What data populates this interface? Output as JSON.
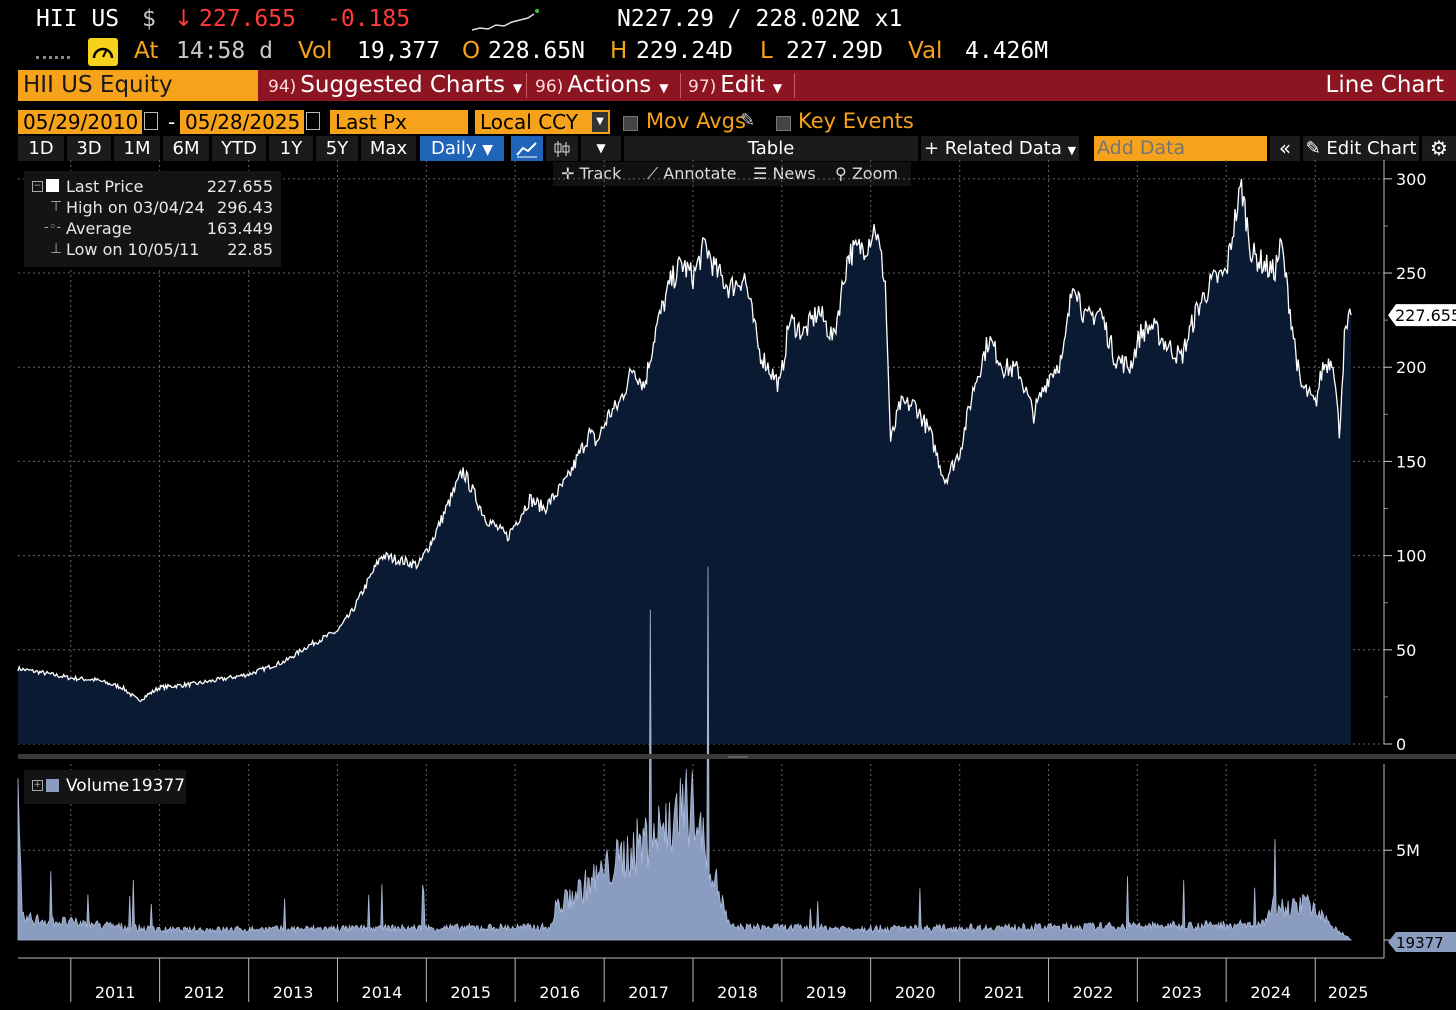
{
  "ticker": {
    "symbol": "HII US",
    "currency": "$",
    "arrow": "↓",
    "last": "227.655",
    "change": "-0.185",
    "bid_ask": "N227.29 / 228.02N",
    "size": "2 x1",
    "at_label": "At",
    "time": "14:58 d",
    "vol_label": "Vol",
    "vol": "19,377",
    "open_label": "O",
    "open": "228.65N",
    "high_label": "H",
    "high": "229.24D",
    "low_label": "L",
    "low": "227.29D",
    "val_label": "Val",
    "val": "4.426M"
  },
  "command_bar": {
    "security": "HII US Equity",
    "suggested_num": "94)",
    "suggested": "Suggested Charts",
    "actions_num": "96)",
    "actions": "Actions",
    "edit_num": "97)",
    "edit": "Edit",
    "chart_type": "Line Chart"
  },
  "settings": {
    "start_date": "05/29/2010",
    "dash": "-",
    "end_date": "05/28/2025",
    "field": "Last Px",
    "currency": "Local CCY",
    "mov_avgs": "Mov Avgs",
    "key_events": "Key Events"
  },
  "periods": [
    "1D",
    "3D",
    "1M",
    "6M",
    "YTD",
    "1Y",
    "5Y",
    "Max"
  ],
  "frequency": "Daily",
  "buttons": {
    "table": "Table",
    "related": "Related Data",
    "add_data_placeholder": "Add Data",
    "edit_chart": "Edit Chart"
  },
  "toolbar": {
    "track": "Track",
    "annotate": "Annotate",
    "news": "News",
    "zoom": "Zoom"
  },
  "legend": {
    "last_label": "Last Price",
    "last_value": "227.655",
    "high_label": "High on 03/04/24",
    "high_value": "296.43",
    "avg_label": "Average",
    "avg_value": "163.449",
    "low_label": "Low on 10/05/11",
    "low_value": "22.85"
  },
  "volume_legend": {
    "label": "Volume",
    "value": "19377"
  },
  "price_tag": "227.655",
  "volume_tag": "19377",
  "colors": {
    "area_fill": "#0b1a33",
    "line": "#ffffff",
    "volume_fill": "#8a9cc0",
    "orange": "#f7a21b",
    "bar_red": "#8c1521",
    "selected_blue": "#1f64b8",
    "down_red": "#ff3b3b"
  },
  "chart_data": [
    {
      "type": "area",
      "series": [
        {
          "name": "Last Price",
          "x": [
            "2010-05-29",
            "2010-09-01",
            "2011-01-01",
            "2011-04-15",
            "2011-08-01",
            "2011-10-05",
            "2012-01-01",
            "2012-06-01",
            "2013-01-01",
            "2013-06-01",
            "2013-09-01",
            "2014-01-01",
            "2014-03-01",
            "2014-07-01",
            "2014-12-01",
            "2015-02-01",
            "2015-06-01",
            "2015-09-01",
            "2015-12-01",
            "2016-03-01",
            "2016-05-01",
            "2016-08-01",
            "2016-11-01",
            "2016-12-01",
            "2017-01-20",
            "2017-03-01",
            "2017-05-01",
            "2017-06-15",
            "2017-08-01",
            "2017-10-01",
            "2017-11-15",
            "2018-01-01",
            "2018-02-20",
            "2018-04-01",
            "2018-06-01",
            "2018-08-01",
            "2018-10-01",
            "2018-12-24",
            "2019-02-01",
            "2019-04-01",
            "2019-06-01",
            "2019-08-01",
            "2019-10-01",
            "2019-12-15",
            "2020-01-20",
            "2020-03-01",
            "2020-03-23",
            "2020-05-01",
            "2020-07-01",
            "2020-09-01",
            "2020-11-01",
            "2021-01-01",
            "2021-03-01",
            "2021-05-01",
            "2021-07-01",
            "2021-09-01",
            "2021-11-01",
            "2022-01-01",
            "2022-03-01",
            "2022-04-15",
            "2022-06-01",
            "2022-08-01",
            "2022-10-01",
            "2022-12-01",
            "2023-01-15",
            "2023-03-01",
            "2023-05-01",
            "2023-07-01",
            "2023-09-01",
            "2023-11-01",
            "2024-01-01",
            "2024-02-01",
            "2024-03-04",
            "2024-04-15",
            "2024-06-01",
            "2024-07-15",
            "2024-08-15",
            "2024-09-15",
            "2024-11-01",
            "2024-11-20",
            "2025-01-01",
            "2025-02-01",
            "2025-03-15",
            "2025-04-10",
            "2025-05-01",
            "2025-05-28"
          ],
          "y": [
            40,
            38,
            35,
            34,
            30,
            23,
            30,
            32,
            37,
            44,
            52,
            60,
            70,
            100,
            95,
            110,
            145,
            120,
            110,
            130,
            125,
            140,
            165,
            160,
            175,
            180,
            200,
            190,
            220,
            245,
            255,
            248,
            265,
            252,
            242,
            248,
            208,
            190,
            225,
            218,
            230,
            215,
            260,
            265,
            275,
            245,
            160,
            180,
            180,
            165,
            140,
            155,
            190,
            215,
            200,
            198,
            175,
            195,
            205,
            248,
            225,
            230,
            205,
            200,
            218,
            222,
            212,
            205,
            230,
            245,
            250,
            275,
            296,
            260,
            255,
            250,
            265,
            235,
            190,
            188,
            180,
            200,
            205,
            165,
            215,
            227.655
          ]
        }
      ],
      "title": "",
      "ylabel": "",
      "ylim": [
        0,
        310
      ],
      "yticks": [
        0,
        50,
        100,
        150,
        200,
        250,
        300
      ],
      "xticks": [
        "2011",
        "2012",
        "2013",
        "2014",
        "2015",
        "2016",
        "2017",
        "2018",
        "2019",
        "2020",
        "2021",
        "2022",
        "2023",
        "2024",
        "2025"
      ],
      "grid": true
    },
    {
      "type": "area",
      "series": [
        {
          "name": "Volume",
          "x": [
            "2010-05-29",
            "2010-06-15",
            "2012-01-01",
            "2014-01-01",
            "2016-06-01",
            "2016-06-15",
            "2017-12-29",
            "2018-06-01",
            "2020-01-01",
            "2022-01-01",
            "2023-06-01",
            "2024-06-01",
            "2024-07-15",
            "2024-10-01",
            "2024-12-01",
            "2025-02-01",
            "2025-05-28"
          ],
          "y": [
            9000000,
            1500000,
            700000,
            800000,
            900000,
            2200000,
            9400000,
            900000,
            800000,
            900000,
            1000000,
            1100000,
            2500000,
            2300000,
            2500000,
            1500000,
            19377
          ]
        }
      ],
      "ylim": [
        0,
        9800000
      ],
      "yticks": [
        0,
        5000000
      ],
      "ytick_labels": [
        "",
        "5M"
      ],
      "grid": true
    }
  ]
}
